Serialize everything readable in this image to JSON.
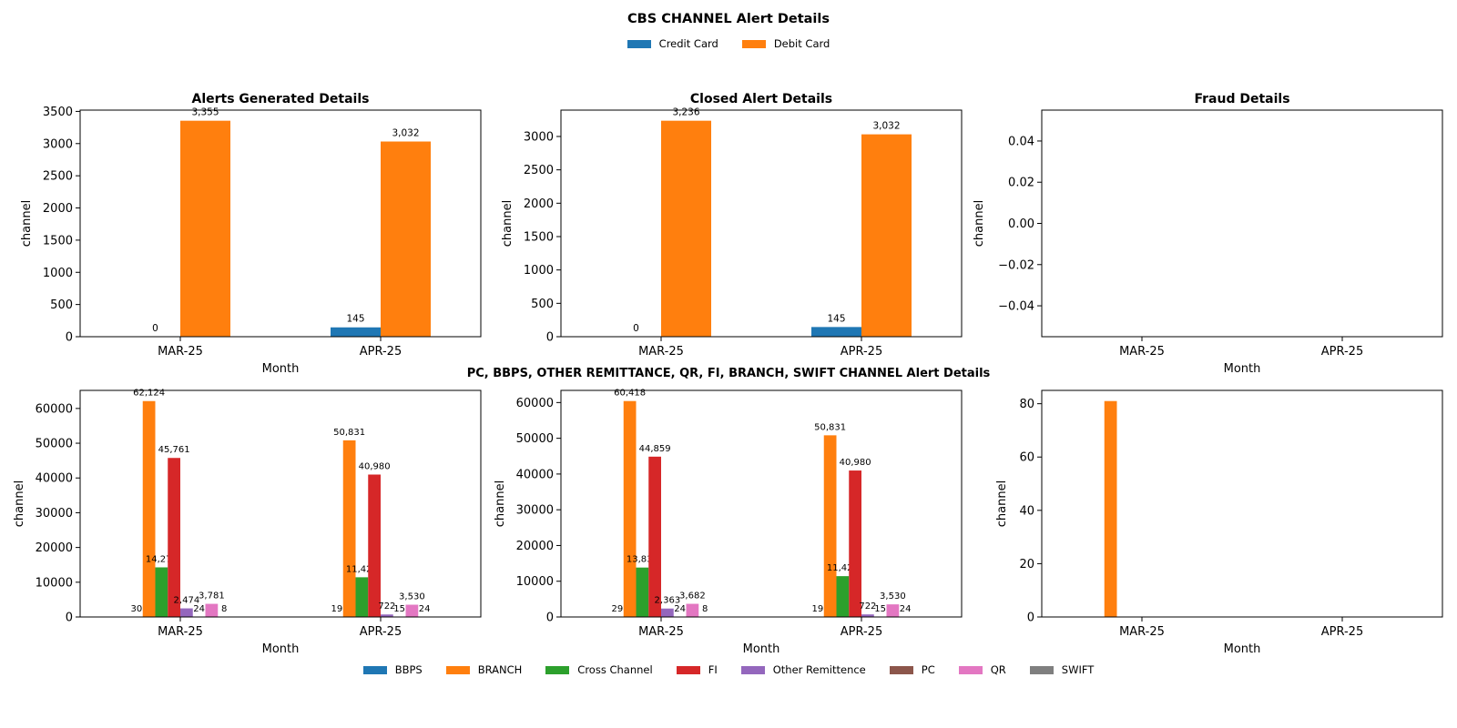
{
  "figure": {
    "title": "CBS CHANNEL Alert Details",
    "subtitle": "PC, BBPS, OTHER REMITTANCE, QR, FI, BRANCH, SWIFT CHANNEL Alert Details"
  },
  "legend_top": [
    {
      "name": "Credit Card",
      "color": "#1f77b4"
    },
    {
      "name": "Debit Card",
      "color": "#ff7f0e"
    }
  ],
  "legend_bottom": [
    {
      "name": "BBPS",
      "color": "#1f77b4"
    },
    {
      "name": "BRANCH",
      "color": "#ff7f0e"
    },
    {
      "name": "Cross Channel",
      "color": "#2ca02c"
    },
    {
      "name": "FI",
      "color": "#d62728"
    },
    {
      "name": "Other Remittence",
      "color": "#9467bd"
    },
    {
      "name": "PC",
      "color": "#8c564b"
    },
    {
      "name": "QR",
      "color": "#e377c2"
    },
    {
      "name": "SWIFT",
      "color": "#7f7f7f"
    }
  ],
  "chart_data": [
    {
      "type": "bar",
      "title": "Alerts Generated Details",
      "xlabel": "Month",
      "ylabel": "channel",
      "categories": [
        "MAR-25",
        "APR-25"
      ],
      "ylim": [
        0,
        3520
      ],
      "yticks": [
        "0",
        "500",
        "1000",
        "1500",
        "2000",
        "2500",
        "3000",
        "3500"
      ],
      "ytick_values": [
        0,
        500,
        1000,
        1500,
        2000,
        2500,
        3000,
        3500
      ],
      "series": [
        {
          "name": "Credit Card",
          "values": [
            0,
            145
          ],
          "labels": [
            "0",
            "145"
          ]
        },
        {
          "name": "Debit Card",
          "values": [
            3355,
            3032
          ],
          "labels": [
            "3,355",
            "3,032"
          ]
        }
      ]
    },
    {
      "type": "bar",
      "title": "Closed Alert Details",
      "xlabel": "",
      "ylabel": "channel",
      "categories": [
        "MAR-25",
        "APR-25"
      ],
      "ylim": [
        0,
        3395
      ],
      "yticks": [
        "0",
        "500",
        "1000",
        "1500",
        "2000",
        "2500",
        "3000"
      ],
      "ytick_values": [
        0,
        500,
        1000,
        1500,
        2000,
        2500,
        3000
      ],
      "series": [
        {
          "name": "Credit Card",
          "values": [
            0,
            145
          ],
          "labels": [
            "0",
            "145"
          ]
        },
        {
          "name": "Debit Card",
          "values": [
            3236,
            3032
          ],
          "labels": [
            "3,236",
            "3,032"
          ]
        }
      ]
    },
    {
      "type": "bar",
      "title": "Fraud Details",
      "xlabel": "Month",
      "ylabel": "channel",
      "categories": [
        "MAR-25",
        "APR-25"
      ],
      "ylim": [
        -0.055,
        0.055
      ],
      "yticks": [
        "0.04",
        "0.02",
        "0.00",
        "−0.02",
        "−0.04"
      ],
      "ytick_values": [
        0.04,
        0.02,
        0.0,
        -0.02,
        -0.04
      ],
      "series": []
    },
    {
      "type": "bar",
      "title": "",
      "xlabel": "Month",
      "ylabel": "channel",
      "categories": [
        "MAR-25",
        "APR-25"
      ],
      "ylim": [
        0,
        65200
      ],
      "yticks": [
        "0",
        "10000",
        "20000",
        "30000",
        "40000",
        "50000",
        "60000"
      ],
      "ytick_values": [
        0,
        10000,
        20000,
        30000,
        40000,
        50000,
        60000
      ],
      "series": [
        {
          "name": "BBPS",
          "values": [
            30,
            19
          ],
          "labels": [
            "30",
            "19"
          ]
        },
        {
          "name": "BRANCH",
          "values": [
            62124,
            50831
          ],
          "labels": [
            "62,124",
            "50,831"
          ]
        },
        {
          "name": "Cross Channel",
          "values": [
            14276,
            11424
          ],
          "labels": [
            "14,276",
            "11,424"
          ]
        },
        {
          "name": "FI",
          "values": [
            45761,
            40980
          ],
          "labels": [
            "45,761",
            "40,980"
          ]
        },
        {
          "name": "Other Remittence",
          "values": [
            2474,
            722
          ],
          "labels": [
            "2,474",
            "722"
          ]
        },
        {
          "name": "PC",
          "values": [
            24,
            15
          ],
          "labels": [
            "24",
            "15"
          ]
        },
        {
          "name": "QR",
          "values": [
            3781,
            3530
          ],
          "labels": [
            "3,781",
            "3,530"
          ]
        },
        {
          "name": "SWIFT",
          "values": [
            8,
            24
          ],
          "labels": [
            "8",
            "24"
          ]
        }
      ]
    },
    {
      "type": "bar",
      "title": "",
      "xlabel": "Month",
      "ylabel": "channel",
      "categories": [
        "MAR-25",
        "APR-25"
      ],
      "ylim": [
        0,
        63400
      ],
      "yticks": [
        "0",
        "10000",
        "20000",
        "30000",
        "40000",
        "50000",
        "60000"
      ],
      "ytick_values": [
        0,
        10000,
        20000,
        30000,
        40000,
        50000,
        60000
      ],
      "series": [
        {
          "name": "BBPS",
          "values": [
            29,
            19
          ],
          "labels": [
            "29",
            "19"
          ]
        },
        {
          "name": "BRANCH",
          "values": [
            60418,
            50831
          ],
          "labels": [
            "60,418",
            "50,831"
          ]
        },
        {
          "name": "Cross Channel",
          "values": [
            13833,
            11424
          ],
          "labels": [
            "13,833",
            "11,424"
          ]
        },
        {
          "name": "FI",
          "values": [
            44859,
            40980
          ],
          "labels": [
            "44,859",
            "40,980"
          ]
        },
        {
          "name": "Other Remittence",
          "values": [
            2363,
            722
          ],
          "labels": [
            "2,363",
            "722"
          ]
        },
        {
          "name": "PC",
          "values": [
            24,
            15
          ],
          "labels": [
            "24",
            "15"
          ]
        },
        {
          "name": "QR",
          "values": [
            3682,
            3530
          ],
          "labels": [
            "3,682",
            "3,530"
          ]
        },
        {
          "name": "SWIFT",
          "values": [
            8,
            24
          ],
          "labels": [
            "8",
            "24"
          ]
        }
      ]
    },
    {
      "type": "bar",
      "title": "",
      "xlabel": "Month",
      "ylabel": "channel",
      "categories": [
        "MAR-25",
        "APR-25"
      ],
      "ylim": [
        0,
        85
      ],
      "yticks": [
        "0",
        "20",
        "40",
        "60",
        "80"
      ],
      "ytick_values": [
        0,
        20,
        40,
        60,
        80
      ],
      "series": [
        {
          "name": "BBPS",
          "values": [
            0,
            0
          ],
          "labels": [
            "",
            ""
          ]
        },
        {
          "name": "BRANCH",
          "values": [
            81,
            0
          ],
          "labels": [
            "",
            ""
          ]
        },
        {
          "name": "Cross Channel",
          "values": [
            0,
            0
          ],
          "labels": [
            "",
            ""
          ]
        },
        {
          "name": "FI",
          "values": [
            0,
            0
          ],
          "labels": [
            "",
            ""
          ]
        },
        {
          "name": "Other Remittence",
          "values": [
            0,
            0
          ],
          "labels": [
            "",
            ""
          ]
        },
        {
          "name": "PC",
          "values": [
            0,
            0
          ],
          "labels": [
            "",
            ""
          ]
        },
        {
          "name": "QR",
          "values": [
            0,
            0
          ],
          "labels": [
            "",
            ""
          ]
        },
        {
          "name": "SWIFT",
          "values": [
            0,
            0
          ],
          "labels": [
            "",
            ""
          ]
        }
      ]
    }
  ]
}
